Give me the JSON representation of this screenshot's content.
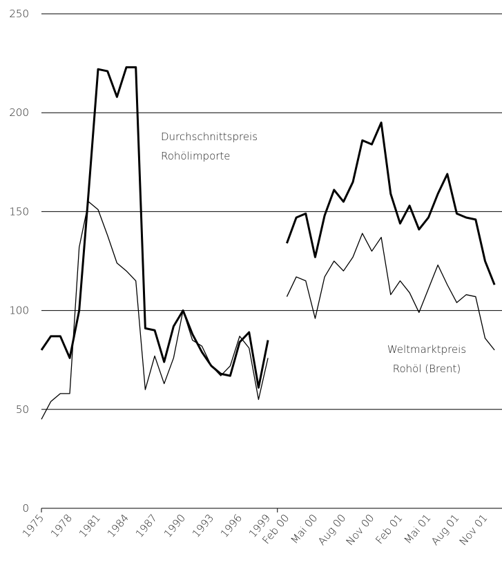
{
  "chart_data": {
    "type": "line",
    "categories": [
      "1975",
      null,
      null,
      "1978",
      null,
      null,
      "1981",
      null,
      null,
      "1984",
      null,
      null,
      "1987",
      null,
      null,
      "1990",
      null,
      null,
      "1993",
      null,
      null,
      "1996",
      null,
      null,
      "1999",
      null,
      "Feb 00",
      null,
      null,
      "Mai 00",
      null,
      null,
      "Aug 00",
      null,
      null,
      "Nov 00",
      null,
      null,
      "Feb 01",
      null,
      null,
      "Mai 01",
      null,
      null,
      "Aug 01",
      null,
      null,
      "Nov 01",
      null
    ],
    "series": [
      {
        "color": "#000000",
        "width": 3,
        "values": [
          80,
          87,
          87,
          76,
          100,
          160,
          222,
          221,
          208,
          223,
          223,
          91,
          90,
          74,
          92,
          100,
          88,
          79,
          72,
          68,
          67,
          84,
          89,
          61,
          85,
          null,
          134,
          147,
          149,
          127,
          148,
          161,
          155,
          165,
          186,
          184,
          195,
          159,
          144,
          153,
          141,
          147,
          159,
          169,
          149,
          147,
          146,
          125,
          113
        ]
      },
      {
        "color": "#000000",
        "width": 1.3,
        "values": [
          45,
          54,
          58,
          58,
          132,
          155,
          151,
          138,
          124,
          120,
          115,
          60,
          77,
          63,
          76,
          100,
          85,
          82,
          72,
          67,
          72,
          87,
          81,
          55,
          76,
          null,
          107,
          117,
          115,
          96,
          117,
          125,
          120,
          127,
          139,
          130,
          137,
          108,
          115,
          109,
          99,
          111,
          123,
          113,
          104,
          108,
          107,
          86,
          80
        ]
      }
    ],
    "annotations": [
      {
        "lines": [
          "Durchschnittspreis",
          "Rohölimporte"
        ]
      },
      {
        "lines": [
          "Weltmarktpreis",
          "Rohöl (Brent)"
        ]
      }
    ],
    "ylim": [
      0,
      250
    ],
    "yticks": [
      0,
      50,
      100,
      150,
      200,
      250
    ],
    "grid": true
  }
}
